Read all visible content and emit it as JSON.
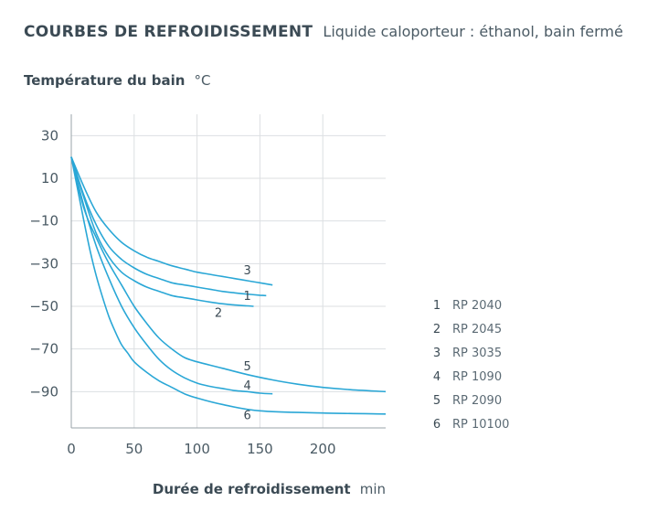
{
  "title": {
    "main": "COURBES DE REFROIDISSEMENT",
    "sub": "Liquide caloporteur : éthanol, bain fermé"
  },
  "chart_data": {
    "type": "line",
    "ylabel_bold": "Température du bain",
    "ylabel_unit": "°C",
    "xlabel_bold": "Durée de refroidissement",
    "xlabel_unit": "min",
    "xlim": [
      0,
      250
    ],
    "ylim": [
      -107,
      40
    ],
    "xticks": [
      0,
      50,
      100,
      150,
      200
    ],
    "yticks": [
      30,
      10,
      -10,
      -30,
      -50,
      -70,
      -90
    ],
    "grid": true,
    "line_color": "#2aa7d6",
    "series": [
      {
        "id": "1",
        "name": "RP 2040",
        "points": [
          [
            0,
            20
          ],
          [
            10,
            2
          ],
          [
            20,
            -12
          ],
          [
            30,
            -22
          ],
          [
            40,
            -28
          ],
          [
            50,
            -32
          ],
          [
            60,
            -35
          ],
          [
            70,
            -37
          ],
          [
            80,
            -39
          ],
          [
            90,
            -40
          ],
          [
            100,
            -41
          ],
          [
            110,
            -42
          ],
          [
            120,
            -43
          ],
          [
            130,
            -43.7
          ],
          [
            140,
            -44.3
          ],
          [
            150,
            -44.8
          ],
          [
            155,
            -45
          ]
        ]
      },
      {
        "id": "2",
        "name": "RP 2045",
        "points": [
          [
            0,
            20
          ],
          [
            10,
            1
          ],
          [
            20,
            -16
          ],
          [
            30,
            -27
          ],
          [
            40,
            -34
          ],
          [
            50,
            -38
          ],
          [
            60,
            -41
          ],
          [
            70,
            -43
          ],
          [
            80,
            -45
          ],
          [
            90,
            -46
          ],
          [
            100,
            -47
          ],
          [
            110,
            -48
          ],
          [
            120,
            -48.8
          ],
          [
            130,
            -49.4
          ],
          [
            140,
            -49.8
          ],
          [
            145,
            -50
          ]
        ]
      },
      {
        "id": "3",
        "name": "RP 3035",
        "points": [
          [
            0,
            20
          ],
          [
            10,
            6
          ],
          [
            20,
            -6
          ],
          [
            30,
            -14
          ],
          [
            40,
            -20
          ],
          [
            50,
            -24
          ],
          [
            60,
            -27
          ],
          [
            70,
            -29
          ],
          [
            80,
            -31
          ],
          [
            90,
            -32.5
          ],
          [
            100,
            -34
          ],
          [
            110,
            -35
          ],
          [
            120,
            -36
          ],
          [
            130,
            -37
          ],
          [
            140,
            -38
          ],
          [
            150,
            -39
          ],
          [
            160,
            -40
          ]
        ]
      },
      {
        "id": "4",
        "name": "RP 1090",
        "points": [
          [
            0,
            20
          ],
          [
            10,
            -3
          ],
          [
            20,
            -22
          ],
          [
            30,
            -37
          ],
          [
            40,
            -50
          ],
          [
            50,
            -60
          ],
          [
            60,
            -68
          ],
          [
            70,
            -75
          ],
          [
            80,
            -80
          ],
          [
            90,
            -83.5
          ],
          [
            100,
            -86
          ],
          [
            110,
            -87.5
          ],
          [
            120,
            -88.5
          ],
          [
            130,
            -89.5
          ],
          [
            140,
            -90
          ],
          [
            150,
            -90.7
          ],
          [
            160,
            -91
          ]
        ]
      },
      {
        "id": "5",
        "name": "RP 2090",
        "points": [
          [
            0,
            20
          ],
          [
            10,
            -4
          ],
          [
            20,
            -18
          ],
          [
            30,
            -30
          ],
          [
            40,
            -40
          ],
          [
            50,
            -50
          ],
          [
            60,
            -58
          ],
          [
            70,
            -65
          ],
          [
            80,
            -70
          ],
          [
            90,
            -74
          ],
          [
            100,
            -76
          ],
          [
            120,
            -79
          ],
          [
            140,
            -82
          ],
          [
            160,
            -84.5
          ],
          [
            180,
            -86.5
          ],
          [
            200,
            -88
          ],
          [
            220,
            -89
          ],
          [
            250,
            -90
          ]
        ]
      },
      {
        "id": "6",
        "name": "RP 10100",
        "points": [
          [
            0,
            20
          ],
          [
            5,
            5
          ],
          [
            10,
            -10
          ],
          [
            15,
            -24
          ],
          [
            20,
            -36
          ],
          [
            25,
            -46
          ],
          [
            30,
            -55
          ],
          [
            35,
            -62
          ],
          [
            40,
            -68
          ],
          [
            45,
            -72
          ],
          [
            50,
            -76
          ],
          [
            60,
            -81
          ],
          [
            70,
            -85
          ],
          [
            80,
            -88
          ],
          [
            90,
            -91
          ],
          [
            100,
            -93
          ],
          [
            120,
            -96
          ],
          [
            150,
            -99
          ],
          [
            200,
            -100
          ],
          [
            250,
            -100.5
          ]
        ]
      }
    ],
    "curve_labels": [
      {
        "id": "3",
        "x": 140,
        "y": -35
      },
      {
        "id": "1",
        "x": 140,
        "y": -47
      },
      {
        "id": "2",
        "x": 117,
        "y": -55
      },
      {
        "id": "5",
        "x": 140,
        "y": -80
      },
      {
        "id": "4",
        "x": 140,
        "y": -89
      },
      {
        "id": "6",
        "x": 140,
        "y": -103
      }
    ]
  }
}
